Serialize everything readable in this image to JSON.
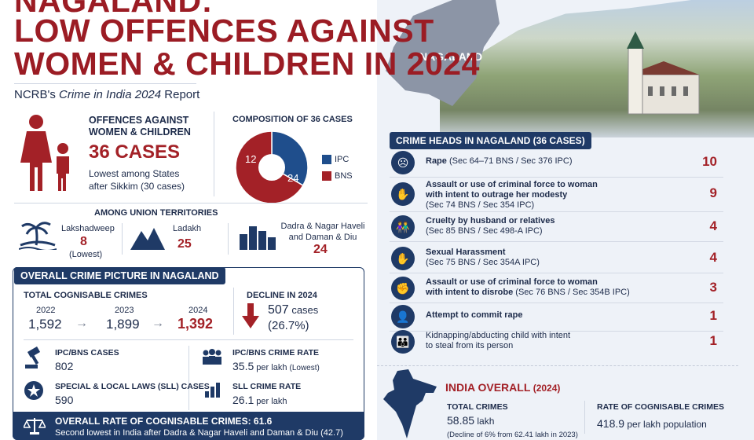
{
  "header": {
    "title_line1": "NAGALAND:",
    "title_line2": "LOW OFFENCES AGAINST",
    "title_line3": "WOMEN & CHILDREN IN 2024",
    "subtitle_prefix": "NCRB's ",
    "subtitle_italic": "Crime in India 2024",
    "subtitle_suffix": " Report",
    "map_label": "NAGALAND"
  },
  "offences": {
    "label_line1": "OFFENCES AGAINST",
    "label_line2": "WOMEN & CHILDREN",
    "cases": "36 CASES",
    "note_line1": "Lowest among States",
    "note_line2": "after Sikkim (30 cases)"
  },
  "composition": {
    "title": "COMPOSITION OF 36 CASES",
    "legend": [
      {
        "label": "IPC",
        "value": 12,
        "color": "#1f4e8c"
      },
      {
        "label": "BNS",
        "value": 24,
        "color": "#a32127"
      }
    ]
  },
  "union_territories": {
    "title": "AMONG UNION TERRITORIES",
    "items": [
      {
        "name": "Lakshadweep",
        "value": "8",
        "note": "(Lowest)",
        "icon": "palm-island-icon"
      },
      {
        "name": "Ladakh",
        "value": "25",
        "note": "",
        "icon": "mountain-icon"
      },
      {
        "name": "Dadra & Nagar Haveli and Daman & Diu",
        "name_line1": "Dadra & Nagar Haveli",
        "name_line2": "and Daman & Diu",
        "value": "24",
        "note": "",
        "icon": "city-icon"
      }
    ]
  },
  "overall": {
    "header": "OVERALL CRIME PICTURE IN NAGALAND",
    "cognisable_title": "TOTAL COGNISABLE CRIMES",
    "years": [
      {
        "year": "2022",
        "value": "1,592"
      },
      {
        "year": "2023",
        "value": "1,899"
      },
      {
        "year": "2024",
        "value": "1,392"
      }
    ],
    "decline_title": "DECLINE IN 2024",
    "decline_value": "507",
    "decline_unit": " cases",
    "decline_pct": "(26.7%)",
    "ipc_bns_label": "IPC/BNS CASES",
    "ipc_bns_value": "802",
    "ipc_bns_rate_label": "IPC/BNS CRIME RATE",
    "ipc_bns_rate_value": "35.5",
    "ipc_bns_rate_unit": " per lakh ",
    "ipc_bns_rate_note": "(Lowest)",
    "sll_label": "SPECIAL & LOCAL LAWS (SLL) CASES",
    "sll_value": "590",
    "sll_rate_label": "SLL CRIME RATE",
    "sll_rate_value": "26.1",
    "sll_rate_unit": " per lakh",
    "overall_rate_text": "OVERALL RATE OF COGNISABLE CRIMES: 61.6",
    "overall_rate_note": "Second lowest in India after Dadra & Nagar Haveli and Daman & Diu (42.7)"
  },
  "crime_heads": {
    "header": "CRIME HEADS IN NAGALAND (36 CASES)",
    "rows": [
      {
        "title": "Rape",
        "detail": " (Sec 64–71 BNS / Sec 376 IPC)",
        "line2": "",
        "value": "10",
        "icon": "distress-icon"
      },
      {
        "title": "Assault or use of criminal force to woman",
        "detail": "",
        "line2_bold": "with intent to outrage her modesty",
        "line3": "(Sec 74 BNS / Sec 354 IPC)",
        "value": "9",
        "icon": "stop-hand-icon"
      },
      {
        "title": "Cruelty by husband or relatives",
        "detail": "",
        "line3": "(Sec 85 BNS / Sec 498-A IPC)",
        "value": "4",
        "icon": "couple-icon"
      },
      {
        "title": "Sexual Harassment",
        "detail": "",
        "line3": "(Sec 75 BNS / Sec 354A IPC)",
        "value": "4",
        "icon": "raised-hand-icon"
      },
      {
        "title": "Assault or use of criminal force to woman",
        "detail": "",
        "line2_bold": "with intent to disrobe",
        "line2_tail": " (Sec 76 BNS / Sec 354B IPC)",
        "value": "3",
        "icon": "assault-icon"
      },
      {
        "title": "Attempt to commit rape",
        "detail": "",
        "value": "1",
        "icon": "person-icon"
      },
      {
        "title": "Kidnapping/abducting child with intent",
        "detail": "",
        "line2": "to steal from its person",
        "value": "1",
        "icon": "child-icon"
      }
    ]
  },
  "india": {
    "title": "INDIA OVERALL",
    "year": " (2024)",
    "total_label": "TOTAL CRIMES",
    "total_value": "58.85",
    "total_unit": " lakh",
    "total_note": "(Decline of 6% from 62.41 lakh in 2023)",
    "rate_label": "RATE OF COGNISABLE CRIMES",
    "rate_value": "418.9",
    "rate_unit": " per lakh population"
  },
  "colors": {
    "accent": "#a32127",
    "navy": "#1f3a66"
  }
}
